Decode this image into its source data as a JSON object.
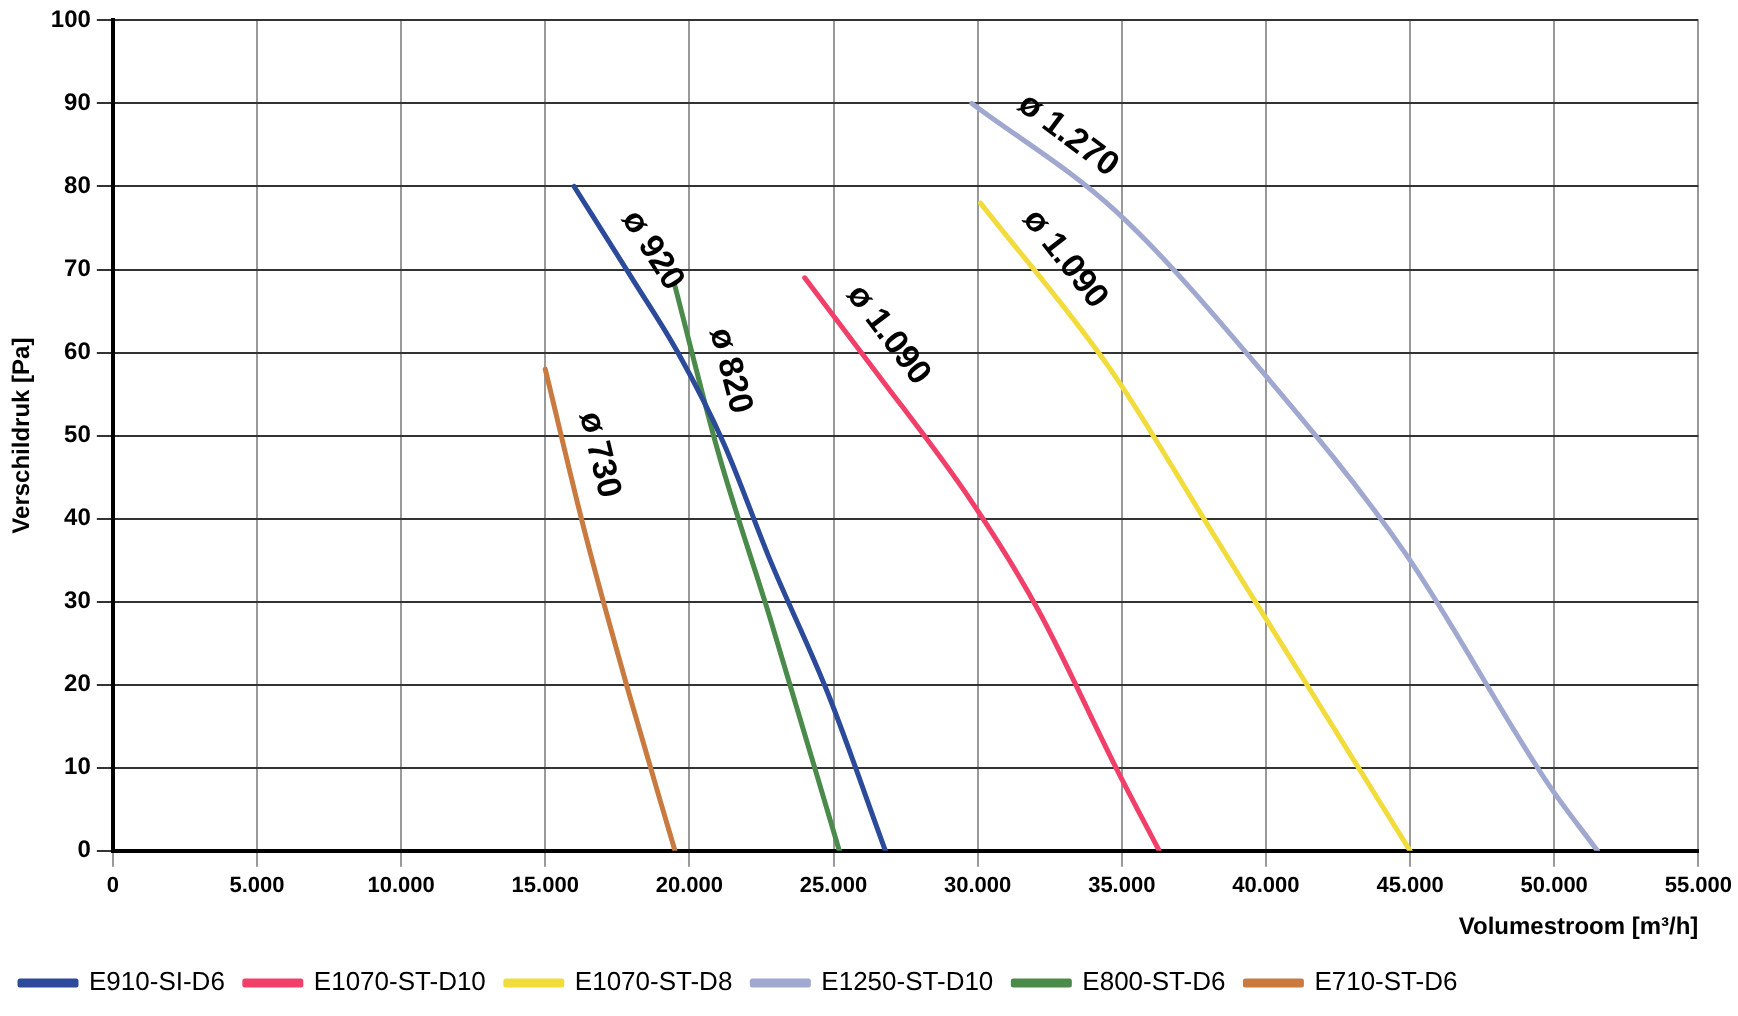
{
  "chart_data": {
    "type": "line",
    "xlabel": "Volumestroom [m³/h]",
    "ylabel": "Verschildruk [Pa]",
    "xlim": [
      0,
      55000
    ],
    "ylim": [
      0,
      100
    ],
    "xticks": [
      0,
      {
        "value": 5000,
        "label": "5.000"
      },
      {
        "value": 10000,
        "label": "10.000"
      },
      {
        "value": 15000,
        "label": "15.000"
      },
      {
        "value": 20000,
        "label": "20.000"
      },
      {
        "value": 25000,
        "label": "25.000"
      },
      {
        "value": 30000,
        "label": "30.000"
      },
      {
        "value": 35000,
        "label": "35.000"
      },
      {
        "value": 40000,
        "label": "40.000"
      },
      {
        "value": 45000,
        "label": "45.000"
      },
      {
        "value": 50000,
        "label": "50.000"
      },
      {
        "value": 55000,
        "label": "55.000"
      }
    ],
    "yticks": [
      0,
      10,
      20,
      30,
      40,
      50,
      60,
      70,
      80,
      90,
      100
    ],
    "grid": true,
    "legend": "bottom",
    "marker": "none",
    "line_style": "solid",
    "series": [
      {
        "name": "E910-SI-D6",
        "color": "#2b4a9a",
        "x": [
          16000,
          18000,
          19600,
          21200,
          22800,
          24800,
          26800
        ],
        "values": [
          80,
          69,
          60,
          49,
          35,
          19,
          0
        ]
      },
      {
        "name": "E1070-ST-D10",
        "color": "#f0406a",
        "x": [
          24000,
          26400,
          29800,
          32100,
          34800,
          36300
        ],
        "values": [
          69,
          58,
          42,
          29,
          10,
          0
        ]
      },
      {
        "name": "E1070-ST-D8",
        "color": "#f2dc3c",
        "x": [
          30100,
          34600,
          38200,
          41600,
          45000
        ],
        "values": [
          78,
          58,
          38,
          19,
          0
        ]
      },
      {
        "name": "E1250-ST-D10",
        "color": "#a0a8d0",
        "x": [
          29800,
          34800,
          39800,
          44800,
          49800,
          51500
        ],
        "values": [
          90,
          77,
          58,
          36,
          8,
          0
        ]
      },
      {
        "name": "E800-ST-D6",
        "color": "#4a8a4a",
        "x": [
          19500,
          21000,
          22800,
          25200
        ],
        "values": [
          68,
          48,
          28,
          0
        ]
      },
      {
        "name": "E710-ST-D6",
        "color": "#c87a40",
        "x": [
          15000,
          16400,
          17900,
          19500
        ],
        "values": [
          58,
          38,
          19,
          0
        ]
      }
    ],
    "annotations": [
      {
        "text": "ø 920",
        "x": 16000,
        "y": 80
      },
      {
        "text": "ø 820",
        "x": 19500,
        "y": 68
      },
      {
        "text": "ø 730",
        "x": 15000,
        "y": 58
      },
      {
        "text": "ø 1.090",
        "x": 24000,
        "y": 69
      },
      {
        "text": "ø 1.090",
        "x": 30100,
        "y": 78
      },
      {
        "text": "ø 1.270",
        "x": 29800,
        "y": 90
      }
    ]
  }
}
